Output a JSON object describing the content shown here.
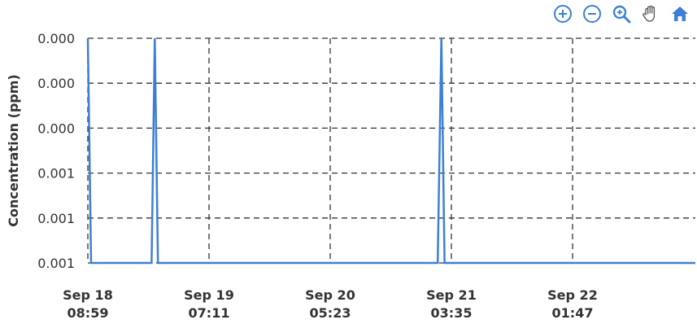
{
  "colors": {
    "series": "#3d7fd6",
    "toolbar_icon": "#3d7fd6",
    "grid": "#333333"
  },
  "toolbar": {
    "items": [
      {
        "icon": "zoom-in-icon"
      },
      {
        "icon": "zoom-out-icon"
      },
      {
        "icon": "magnifier-zoom-icon"
      },
      {
        "icon": "pan-hand-icon"
      },
      {
        "icon": "home-reset-icon"
      }
    ]
  },
  "chart_data": {
    "type": "line",
    "title": "",
    "xlabel": "",
    "ylabel": "Concentration (ppm)",
    "x_tick_labels": [
      [
        "Sep 18",
        "08:59"
      ],
      [
        "Sep 19",
        "07:11"
      ],
      [
        "Sep 20",
        "05:23"
      ],
      [
        "Sep 21",
        "03:35"
      ],
      [
        "Sep 22",
        "01:47"
      ]
    ],
    "y_tick_labels": [
      "0.001",
      "0.001",
      "0.001",
      "0.000",
      "0.000",
      "0.000"
    ],
    "ylim": [
      0,
      0.001
    ],
    "xlim": [
      "2023-09-18 08:59",
      "2023-09-23 04:00"
    ],
    "grid": true,
    "grid_style": "dashed",
    "series": [
      {
        "points": [
          [
            "2023-09-18 08:59",
            0.001
          ],
          [
            "2023-09-18 09:35",
            0.0
          ],
          [
            "2023-09-18 20:40",
            0.0
          ],
          [
            "2023-09-18 21:15",
            0.001
          ],
          [
            "2023-09-18 21:50",
            0.0
          ],
          [
            "2023-09-21 01:05",
            0.0
          ],
          [
            "2023-09-21 01:45",
            0.001
          ],
          [
            "2023-09-21 02:20",
            0.0
          ],
          [
            "2023-09-23 04:00",
            0.0
          ]
        ]
      }
    ]
  }
}
